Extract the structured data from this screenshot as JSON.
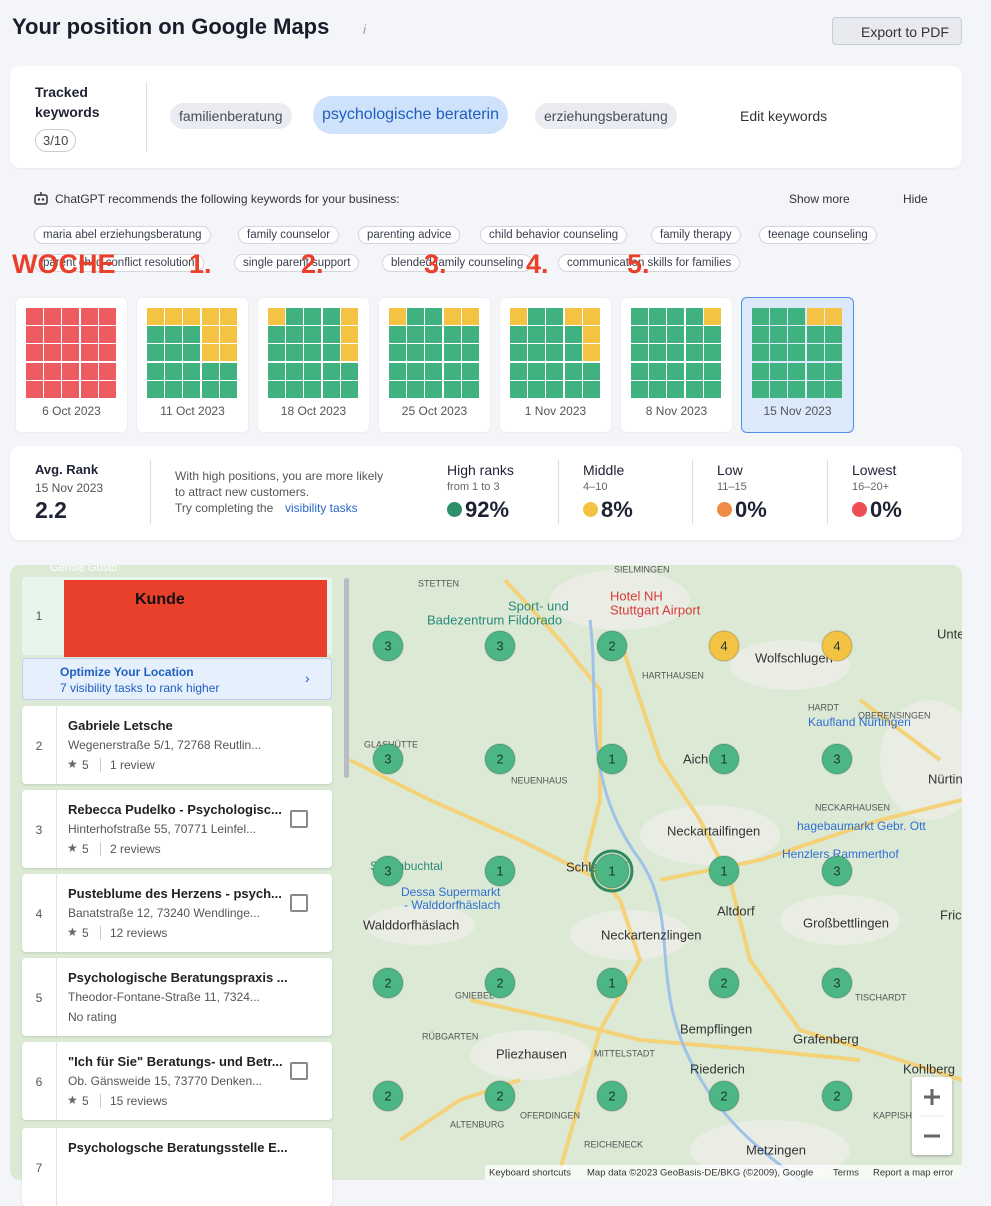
{
  "header": {
    "title": "Your position on Google Maps",
    "export": "Export to PDF"
  },
  "keywords": {
    "label": "Tracked keywords",
    "count": "3/10",
    "items": [
      "familienberatung",
      "psychologische beraterin",
      "erziehungsberatung"
    ],
    "selected": 1,
    "edit": "Edit keywords"
  },
  "recommend": {
    "text": "ChatGPT recommends the following keywords for your business:",
    "show_more": "Show more",
    "hide": "Hide",
    "chips": [
      "maria abel erziehungsberatung",
      "family counselor",
      "parenting advice",
      "child behavior counseling",
      "family therapy",
      "teenage counseling",
      "parent child conflict resolution",
      "single parent support",
      "blended family counseling",
      "communication skills for families"
    ]
  },
  "annotations": {
    "woche": "WOCHE",
    "weeks": [
      "1.",
      "2.",
      "3.",
      "4.",
      "5."
    ]
  },
  "snapshots": {
    "colors": {
      "g": "#3fb27f",
      "y": "#f5c343",
      "r": "#ee5b60"
    },
    "selected": 6,
    "items": [
      {
        "date": "6 Oct 2023",
        "grid": [
          "rrrrr",
          "rrrrr",
          "rrrrr",
          "rrrrr",
          "rrrrr"
        ]
      },
      {
        "date": "11 Oct 2023",
        "grid": [
          "yyyyy",
          "gggyy",
          "gggyy",
          "ggggg",
          "ggggg"
        ]
      },
      {
        "date": "18 Oct 2023",
        "grid": [
          "ygggy",
          "ggggy",
          "ggggy",
          "ggggg",
          "ggggg"
        ]
      },
      {
        "date": "25 Oct 2023",
        "grid": [
          "yggyy",
          "ggggg",
          "ggggg",
          "ggggg",
          "ggggg"
        ]
      },
      {
        "date": "1 Nov 2023",
        "grid": [
          "yggyy",
          "ggggy",
          "ggggy",
          "ggggg",
          "ggggg"
        ]
      },
      {
        "date": "8 Nov 2023",
        "grid": [
          "ggggy",
          "ggggg",
          "ggggg",
          "ggggg",
          "ggggg"
        ]
      },
      {
        "date": "15 Nov 2023",
        "grid": [
          "gggyy",
          "ggggg",
          "ggggg",
          "ggggg",
          "ggggg"
        ]
      }
    ]
  },
  "stats": {
    "label": "Avg. Rank",
    "date": "15 Nov 2023",
    "value": "2.2",
    "desc": [
      "With high positions, you are more likely",
      "to attract new customers.",
      "Try completing the "
    ],
    "link": "visibility tasks",
    "categories": [
      {
        "name": "High ranks",
        "range": "from 1 to 3",
        "value": "92%",
        "color": "#2f8f6a"
      },
      {
        "name": "Middle",
        "range": "4–10",
        "value": "8%",
        "color": "#f5c343"
      },
      {
        "name": "Low",
        "range": "11–15",
        "value": "0%",
        "color": "#ee8b47"
      },
      {
        "name": "Lowest",
        "range": "16–20+",
        "value": "0%",
        "color": "#ee4f55"
      }
    ]
  },
  "list": {
    "first": {
      "rank": "1",
      "name": "Kunde"
    },
    "optimize": {
      "title": "Optimize Your Location",
      "sub": "7 visibility tasks to rank higher"
    },
    "items": [
      {
        "rank": "2",
        "name": "Gabriele Letsche",
        "address": "Wegenerstraße 5/1, 72768 Reutlin...",
        "rating": "5",
        "reviews": "1 review"
      },
      {
        "rank": "3",
        "name": "Rebecca Pudelko - Psychologisc...",
        "address": "Hinterhofstraße 55, 70771 Leinfel...",
        "rating": "5",
        "reviews": "2 reviews"
      },
      {
        "rank": "4",
        "name": "Pusteblume des Herzens - psych...",
        "address": "Banatstraße 12, 73240 Wendlinge...",
        "rating": "5",
        "reviews": "12 reviews"
      },
      {
        "rank": "5",
        "name": "Psychologische Beratungspraxis ...",
        "address": "Theodor-Fontane-Straße 11, 7324...",
        "reviews": "No rating"
      },
      {
        "rank": "6",
        "name": "\"Ich für Sie\" Beratungs- und Betr...",
        "address": "Ob. Gänsweide 15, 73770 Denken...",
        "rating": "5",
        "reviews": "15 reviews"
      },
      {
        "rank": "7",
        "name": "Psychologsche Beratungsstelle E..."
      }
    ]
  },
  "map": {
    "bubbles": [
      [
        3,
        3,
        2,
        4,
        4
      ],
      [
        3,
        2,
        1,
        1,
        3
      ],
      [
        3,
        1,
        1,
        1,
        3
      ],
      [
        2,
        2,
        1,
        2,
        3
      ],
      [
        2,
        2,
        2,
        2,
        2
      ]
    ],
    "bubble_ranks": [
      "gggyy",
      "ggggg",
      "ggggg",
      "ggggg",
      "ggggg"
    ],
    "bubble_colors": {
      "g": "#4cb685",
      "y": "#f5c343"
    },
    "labels": [
      "Gentile Gusto",
      "STETTEN",
      "SIELMINGEN",
      "Hotel NH",
      "Stuttgart Airport",
      "Sport- und",
      "Badezentrum Fildorado",
      "HARTHAUSEN",
      "Wolfschlugen",
      "Unte",
      "HARDT",
      "OBERENSINGEN",
      "Kaufland Nürtingen",
      "GLASHÜTTE",
      "NEUENHAUS",
      "Aich",
      "Nürtin",
      "NECKARHAUSEN",
      "Neckartailfingen",
      "hagebaumarkt Gebr. Ott",
      "Henzlers Rammerthof",
      "Schönbuchtal",
      "Schlaitdorf",
      "Dessa Supermarkt",
      "- Walddorfhäslach",
      "Walddorfhäslach",
      "Altdorf",
      "Großbettlingen",
      "Fric",
      "Neckartenzlingen",
      "GNIEBEL",
      "TISCHARDT",
      "Bempflingen",
      "RÜBGARTEN",
      "Pliezhausen",
      "MITTELSTADT",
      "Grafenberg",
      "Riederich",
      "Kohlberg",
      "OFERDINGEN",
      "KAPPISHÄ",
      "ALTENBURG",
      "REICHENECK",
      "Metzingen"
    ],
    "footer": [
      "Keyboard shortcuts",
      "Map data ©2023 GeoBasis-DE/BKG (©2009), Google",
      "Terms",
      "Report a map error"
    ]
  }
}
